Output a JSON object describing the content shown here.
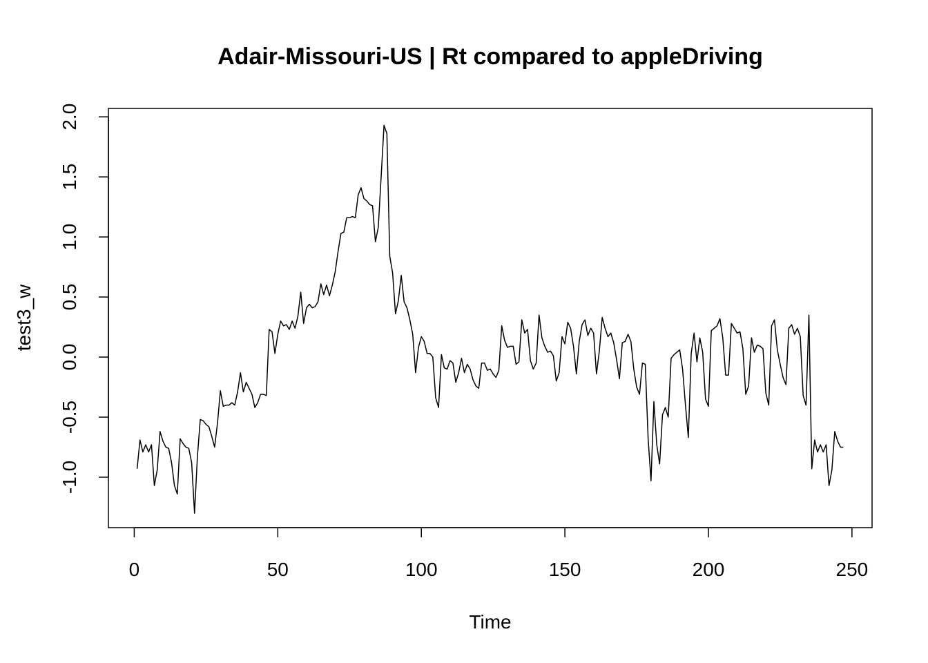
{
  "chart_data": {
    "type": "line",
    "title": "Adair-Missouri-US | Rt compared to appleDriving",
    "xlabel": "Time",
    "ylabel": "test3_w",
    "xlim": [
      -9,
      257
    ],
    "ylim": [
      -1.42,
      2.07
    ],
    "x_ticks": [
      0,
      50,
      100,
      150,
      200,
      250
    ],
    "y_ticks": [
      -1.0,
      -0.5,
      0.0,
      0.5,
      1.0,
      1.5,
      2.0
    ],
    "x_tick_labels": [
      "0",
      "50",
      "100",
      "150",
      "200",
      "250"
    ],
    "y_tick_labels": [
      "-1.0",
      "-0.5",
      "0.0",
      "0.5",
      "1.0",
      "1.5",
      "2.0"
    ],
    "grid": false,
    "line_color": "#000000",
    "series": [
      {
        "x_start": 1,
        "values": [
          -0.93,
          -0.69,
          -0.79,
          -0.73,
          -0.79,
          -0.73,
          -1.07,
          -0.94,
          -0.62,
          -0.7,
          -0.75,
          -0.76,
          -0.88,
          -1.07,
          -1.14,
          -0.68,
          -0.72,
          -0.75,
          -0.76,
          -0.88,
          -1.3,
          -0.83,
          -0.52,
          -0.53,
          -0.56,
          -0.58,
          -0.66,
          -0.75,
          -0.55,
          -0.28,
          -0.41,
          -0.4,
          -0.4,
          -0.38,
          -0.4,
          -0.29,
          -0.13,
          -0.29,
          -0.21,
          -0.26,
          -0.31,
          -0.42,
          -0.38,
          -0.31,
          -0.31,
          -0.32,
          0.23,
          0.21,
          0.03,
          0.19,
          0.3,
          0.26,
          0.27,
          0.23,
          0.3,
          0.24,
          0.34,
          0.54,
          0.28,
          0.41,
          0.44,
          0.41,
          0.42,
          0.46,
          0.61,
          0.52,
          0.6,
          0.51,
          0.6,
          0.71,
          0.88,
          1.03,
          1.04,
          1.16,
          1.16,
          1.17,
          1.16,
          1.35,
          1.41,
          1.32,
          1.3,
          1.27,
          1.26,
          0.96,
          1.08,
          1.5,
          1.93,
          1.86,
          0.84,
          0.7,
          0.36,
          0.47,
          0.68,
          0.46,
          0.41,
          0.31,
          0.19,
          -0.13,
          0.08,
          0.17,
          0.13,
          0.03,
          0.03,
          0.0,
          -0.34,
          -0.42,
          0.02,
          -0.09,
          -0.1,
          -0.03,
          -0.05,
          -0.21,
          -0.13,
          -0.01,
          -0.13,
          -0.06,
          -0.1,
          -0.19,
          -0.24,
          -0.26,
          -0.05,
          -0.05,
          -0.11,
          -0.1,
          -0.14,
          -0.17,
          -0.11,
          0.26,
          0.14,
          0.08,
          0.09,
          0.09,
          -0.06,
          -0.04,
          0.31,
          0.2,
          0.23,
          -0.03,
          -0.1,
          -0.05,
          0.35,
          0.16,
          0.09,
          0.04,
          0.05,
          0.01,
          -0.2,
          -0.13,
          0.17,
          0.11,
          0.29,
          0.24,
          0.09,
          -0.14,
          0.13,
          0.27,
          0.31,
          0.18,
          0.24,
          0.2,
          -0.14,
          0.05,
          0.33,
          0.24,
          0.17,
          0.2,
          0.12,
          -0.02,
          -0.18,
          0.12,
          0.13,
          0.19,
          0.13,
          -0.1,
          -0.25,
          -0.31,
          -0.05,
          -0.06,
          -0.68,
          -1.03,
          -0.37,
          -0.73,
          -0.89,
          -0.48,
          -0.42,
          -0.5,
          -0.01,
          0.02,
          0.04,
          0.06,
          -0.1,
          -0.4,
          -0.67,
          0.03,
          0.2,
          -0.04,
          0.16,
          0.04,
          -0.35,
          -0.41,
          0.22,
          0.24,
          0.26,
          0.32,
          0.16,
          -0.15,
          -0.15,
          0.28,
          0.24,
          0.2,
          0.21,
          0.07,
          -0.31,
          -0.24,
          0.16,
          0.04,
          0.1,
          0.09,
          0.07,
          -0.3,
          -0.4,
          0.26,
          0.31,
          0.06,
          -0.06,
          -0.17,
          -0.23,
          0.24,
          0.27,
          0.19,
          0.24,
          0.17,
          -0.32,
          -0.4,
          0.35,
          -0.93,
          -0.69,
          -0.79,
          -0.73,
          -0.79,
          -0.73,
          -1.07,
          -0.94,
          -0.62,
          -0.7,
          -0.75,
          -0.75
        ]
      }
    ]
  }
}
